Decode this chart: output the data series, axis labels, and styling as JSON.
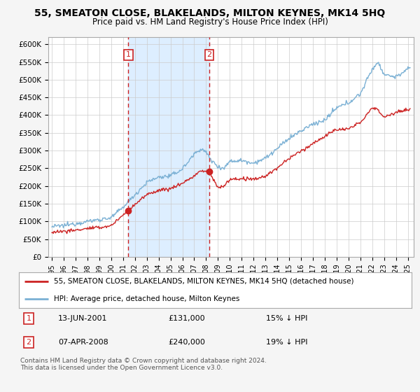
{
  "title": "55, SMEATON CLOSE, BLAKELANDS, MILTON KEYNES, MK14 5HQ",
  "subtitle": "Price paid vs. HM Land Registry's House Price Index (HPI)",
  "ylabel_ticks": [
    "£0",
    "£50K",
    "£100K",
    "£150K",
    "£200K",
    "£250K",
    "£300K",
    "£350K",
    "£400K",
    "£450K",
    "£500K",
    "£550K",
    "£600K"
  ],
  "ytick_values": [
    0,
    50000,
    100000,
    150000,
    200000,
    250000,
    300000,
    350000,
    400000,
    450000,
    500000,
    550000,
    600000
  ],
  "ylim": [
    0,
    620000
  ],
  "hpi_color": "#7ab0d4",
  "price_color": "#cc2222",
  "background_color": "#f5f5f5",
  "plot_bg_color": "#ffffff",
  "shade_color": "#ddeeff",
  "transaction1_date": "13-JUN-2001",
  "transaction1_price": 131000,
  "transaction1_pct": "15% ↓ HPI",
  "transaction1_x": 2001.45,
  "transaction2_date": "07-APR-2008",
  "transaction2_price": 240000,
  "transaction2_x": 2008.27,
  "transaction2_pct": "19% ↓ HPI",
  "legend_label_price": "55, SMEATON CLOSE, BLAKELANDS, MILTON KEYNES, MK14 5HQ (detached house)",
  "legend_label_hpi": "HPI: Average price, detached house, Milton Keynes",
  "footer_text": "Contains HM Land Registry data © Crown copyright and database right 2024.\nThis data is licensed under the Open Government Licence v3.0.",
  "xlim_start": 1994.7,
  "xlim_end": 2025.5,
  "xtick_years": [
    1995,
    1996,
    1997,
    1998,
    1999,
    2000,
    2001,
    2002,
    2003,
    2004,
    2005,
    2006,
    2007,
    2008,
    2009,
    2010,
    2011,
    2012,
    2013,
    2014,
    2015,
    2016,
    2017,
    2018,
    2019,
    2020,
    2021,
    2022,
    2023,
    2024,
    2025
  ]
}
